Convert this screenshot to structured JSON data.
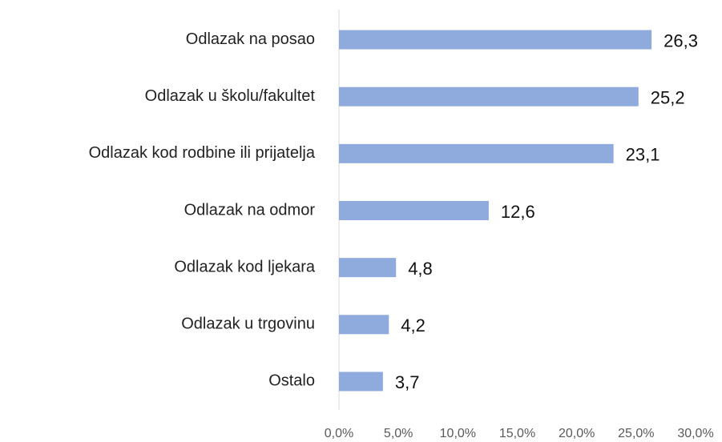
{
  "chart_data": {
    "type": "bar",
    "orientation": "horizontal",
    "categories": [
      "Odlazak na posao",
      "Odlazak u školu/fakultet",
      "Odlazak kod rodbine ili prijatelja",
      "Odlazak na odmor",
      "Odlazak kod ljekara",
      "Odlazak u trgovinu",
      "Ostalo"
    ],
    "values": [
      26.3,
      25.2,
      23.1,
      12.6,
      4.8,
      4.2,
      3.7
    ],
    "value_labels": [
      "26,3",
      "25,2",
      "23,1",
      "12,6",
      "4,8",
      "4,2",
      "3,7"
    ],
    "color": "#8faadc",
    "xlim": [
      0,
      30
    ],
    "xticks": [
      {
        "value": 0,
        "label": "0,0%"
      },
      {
        "value": 5,
        "label": "5,0%"
      },
      {
        "value": 10,
        "label": "10,0%"
      },
      {
        "value": 15,
        "label": "15,0%"
      },
      {
        "value": 20,
        "label": "20,0%"
      },
      {
        "value": 25,
        "label": "25,0%"
      },
      {
        "value": 30,
        "label": "30,0%"
      }
    ],
    "grid": false
  }
}
